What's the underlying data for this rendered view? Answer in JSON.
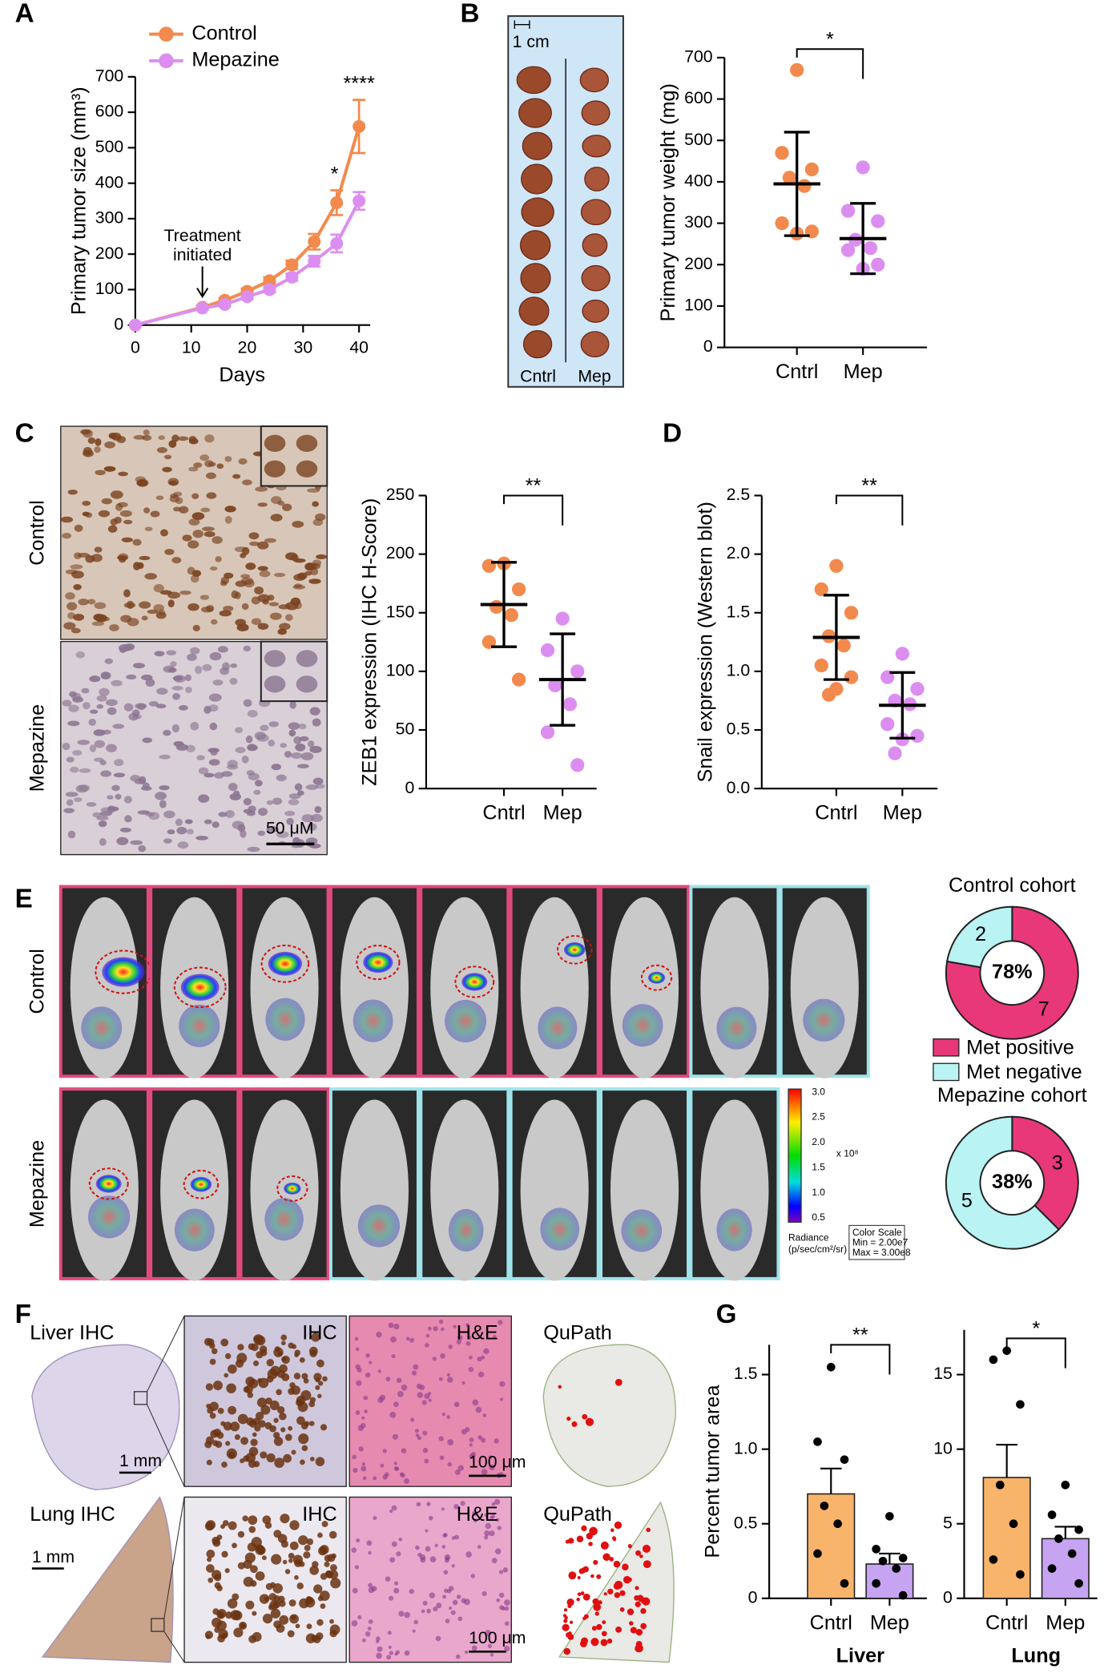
{
  "chart_data": [
    {
      "type": "line",
      "xlabel": "Days",
      "ylabel": "Primary tumor size (mm³)",
      "x": [
        0,
        12,
        16,
        20,
        24,
        28,
        32,
        36,
        40
      ],
      "series": [
        {
          "name": "Control",
          "color": "#f28a4d",
          "values": [
            0,
            50,
            70,
            95,
            125,
            170,
            235,
            345,
            560
          ],
          "errors": [
            0,
            5,
            6,
            8,
            10,
            12,
            22,
            35,
            75
          ]
        },
        {
          "name": "Mepazine",
          "color": "#dc8ef0",
          "values": [
            0,
            48,
            58,
            80,
            100,
            135,
            180,
            230,
            350
          ],
          "errors": [
            0,
            5,
            5,
            7,
            8,
            10,
            15,
            25,
            25
          ]
        }
      ],
      "xlim": [
        0,
        42
      ],
      "xticks": [
        0,
        10,
        20,
        30,
        40
      ],
      "ylim": [
        0,
        700
      ],
      "yticks": [
        0,
        100,
        200,
        300,
        400,
        500,
        600,
        700
      ],
      "annotation": [
        "Treatment",
        "initiated"
      ],
      "significance": [
        "*",
        "****"
      ]
    },
    {
      "type": "dot",
      "ylabel": "Primary tumor weight (mg)",
      "categories": [
        "Cntrl",
        "Mep"
      ],
      "groups": [
        {
          "color": "#f28a4d",
          "values": [
            670,
            470,
            430,
            410,
            390,
            300,
            280,
            275
          ],
          "mean": 395,
          "sd": 125
        },
        {
          "color": "#dc8ef0",
          "values": [
            435,
            330,
            305,
            260,
            240,
            235,
            200,
            190
          ],
          "mean": 263,
          "sd": 85
        }
      ],
      "ylim": [
        0,
        700
      ],
      "yticks": [
        0,
        100,
        200,
        300,
        400,
        500,
        600,
        700
      ],
      "significance": "*"
    },
    {
      "type": "dot",
      "ylabel": "ZEB1 expression (IHC H-Score)",
      "categories": [
        "Cntrl",
        "Mep"
      ],
      "groups": [
        {
          "color": "#f28a4d",
          "values": [
            192,
            190,
            170,
            155,
            148,
            125,
            93
          ],
          "mean": 157,
          "sd": 36
        },
        {
          "color": "#dc8ef0",
          "values": [
            145,
            118,
            100,
            88,
            72,
            48,
            20
          ],
          "mean": 93,
          "sd": 39
        }
      ],
      "ylim": [
        0,
        250
      ],
      "yticks": [
        0,
        50,
        100,
        150,
        200,
        250
      ],
      "significance": "**"
    },
    {
      "type": "dot",
      "ylabel": "Snail expression (Western blot)",
      "categories": [
        "Cntrl",
        "Mep"
      ],
      "groups": [
        {
          "color": "#f28a4d",
          "values": [
            1.9,
            1.7,
            1.5,
            1.3,
            1.22,
            1.05,
            0.95,
            0.85,
            0.8
          ],
          "mean": 1.29,
          "sd": 0.36
        },
        {
          "color": "#dc8ef0",
          "values": [
            1.15,
            0.95,
            0.85,
            0.75,
            0.72,
            0.55,
            0.45,
            0.42,
            0.3
          ],
          "mean": 0.71,
          "sd": 0.28
        }
      ],
      "ylim": [
        0,
        2.5
      ],
      "yticks": [
        {
          "value": 0,
          "label": "0.0"
        },
        {
          "value": 0.5,
          "label": "0.5"
        },
        {
          "value": 1,
          "label": "1.0"
        },
        {
          "value": 1.5,
          "label": "1.5"
        },
        {
          "value": 2,
          "label": "2.0"
        },
        {
          "value": 2.5,
          "label": "2.5"
        }
      ],
      "significance": "**"
    },
    {
      "type": "pie",
      "title": "Control cohort",
      "categories": [
        "Met positive",
        "Met negative"
      ],
      "colors": [
        "#e8387a",
        "#b9f3f3"
      ],
      "values": [
        7,
        2
      ],
      "center_label": "78%",
      "legend": true
    },
    {
      "type": "pie",
      "title": "Mepazine cohort",
      "categories": [
        "Met positive",
        "Met negative"
      ],
      "colors": [
        "#e8387a",
        "#b9f3f3"
      ],
      "values": [
        3,
        5
      ],
      "center_label": "38%",
      "legend": false
    },
    {
      "type": "bar",
      "ylabel": "Percent tumor area",
      "xlabel": "Liver",
      "categories": [
        "Cntrl",
        "Mep"
      ],
      "colors": [
        "#f9b46b",
        "#c7a4f2"
      ],
      "values": [
        0.7,
        0.23
      ],
      "errors": [
        0.17,
        0.07
      ],
      "points": [
        [
          1.55,
          1.05,
          0.93,
          0.62,
          0.5,
          0.3,
          0.1
        ],
        [
          0.55,
          0.33,
          0.27,
          0.25,
          0.2,
          0.1,
          0.02
        ]
      ],
      "ylim": [
        0,
        1.7
      ],
      "yticks": [
        0,
        0.5,
        {
          "value": 1,
          "label": "1.0"
        },
        1.5
      ],
      "significance": "**"
    },
    {
      "type": "bar",
      "xlabel": "Lung",
      "categories": [
        "Cntrl",
        "Mep"
      ],
      "colors": [
        "#f9b46b",
        "#c7a4f2"
      ],
      "values": [
        8.1,
        4.0
      ],
      "errors": [
        2.2,
        0.8
      ],
      "points": [
        [
          16.6,
          16.0,
          13.0,
          7.6,
          5.0,
          2.6,
          1.6
        ],
        [
          7.6,
          5.6,
          4.6,
          4.0,
          3.0,
          2.0,
          1.0
        ]
      ],
      "ylim": [
        0,
        18
      ],
      "yticks": [
        0,
        5,
        10,
        15
      ],
      "significance": "*"
    }
  ],
  "figure": {
    "panel_labels": [
      "A",
      "B",
      "C",
      "D",
      "E",
      "F",
      "G"
    ],
    "b_image": {
      "scale": "1 cm",
      "labels": [
        "Cntrl",
        "Mep"
      ]
    },
    "c_image": {
      "rows": [
        "Control",
        "Mepazine"
      ],
      "scale": "50 μM"
    },
    "e_image": {
      "rows": [
        "Control",
        "Mepazine"
      ],
      "colorbar_ticks": [
        "3.0",
        "2.5",
        "2.0",
        "1.5",
        "1.0",
        "0.5"
      ],
      "multiplier": "x 10⁸",
      "unit": [
        "Radiance",
        "(p/sec/cm²/sr)"
      ],
      "scale_box": [
        "Color Scale",
        "Min = 2.00e7",
        "Max = 3.00e8"
      ]
    },
    "f_image": {
      "rows": [
        {
          "title": "Liver IHC",
          "scale": "1 mm",
          "zoom_scale": "100 μm"
        },
        {
          "title": "Lung IHC",
          "scale": "1 mm",
          "zoom_scale": "100 μm"
        }
      ],
      "panels": [
        "IHC",
        "H&E",
        "QuPath"
      ]
    }
  }
}
